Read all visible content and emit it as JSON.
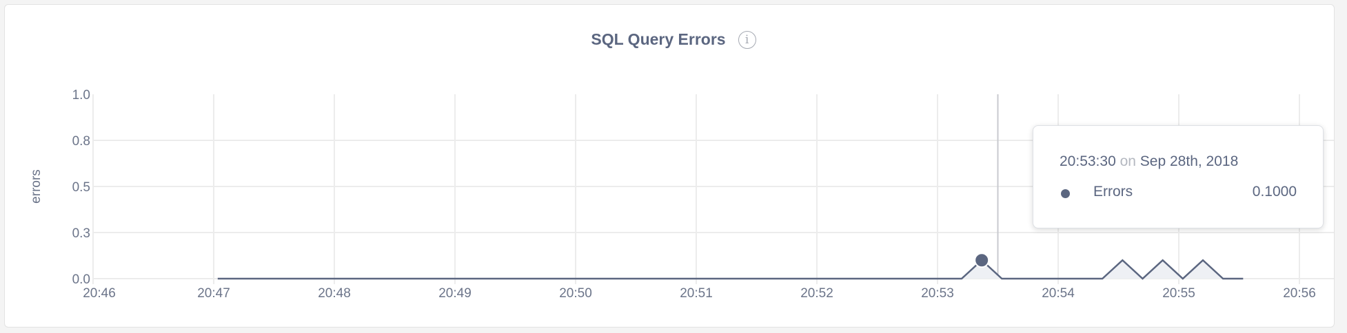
{
  "chart_data": {
    "type": "area",
    "title": "SQL Query Errors",
    "ylabel": "errors",
    "xlabel": "",
    "ylim": [
      0,
      1
    ],
    "yticks": [
      {
        "value": 0,
        "label": "0.0"
      },
      {
        "value": 0.25,
        "label": "0.3"
      },
      {
        "value": 0.5,
        "label": "0.5"
      },
      {
        "value": 0.75,
        "label": "0.8"
      },
      {
        "value": 1,
        "label": "1.0"
      }
    ],
    "xlim": [
      "20:46:00",
      "20:56:00"
    ],
    "xticks": [
      "20:46",
      "20:47",
      "20:48",
      "20:49",
      "20:50",
      "20:51",
      "20:52",
      "20:53",
      "20:54",
      "20:55",
      "20:56"
    ],
    "grid": true,
    "series": [
      {
        "name": "Errors",
        "color": "#5b6680",
        "points": [
          {
            "x": "20:47:02",
            "y": 0
          },
          {
            "x": "20:53:12",
            "y": 0
          },
          {
            "x": "20:53:22",
            "y": 0.1
          },
          {
            "x": "20:53:32",
            "y": 0
          },
          {
            "x": "20:54:22",
            "y": 0
          },
          {
            "x": "20:54:32",
            "y": 0.1
          },
          {
            "x": "20:54:42",
            "y": 0
          },
          {
            "x": "20:54:52",
            "y": 0.1
          },
          {
            "x": "20:55:02",
            "y": 0
          },
          {
            "x": "20:55:12",
            "y": 0.1
          },
          {
            "x": "20:55:22",
            "y": 0
          },
          {
            "x": "20:55:32",
            "y": 0
          }
        ]
      }
    ],
    "hover": {
      "x": "20:53:30",
      "highlight_point": 2
    }
  },
  "tooltip": {
    "time": "20:53:30",
    "on": "on",
    "date": "Sep 28th, 2018",
    "series_name": "Errors",
    "value": "0.1000"
  },
  "info_icon": "info-icon"
}
